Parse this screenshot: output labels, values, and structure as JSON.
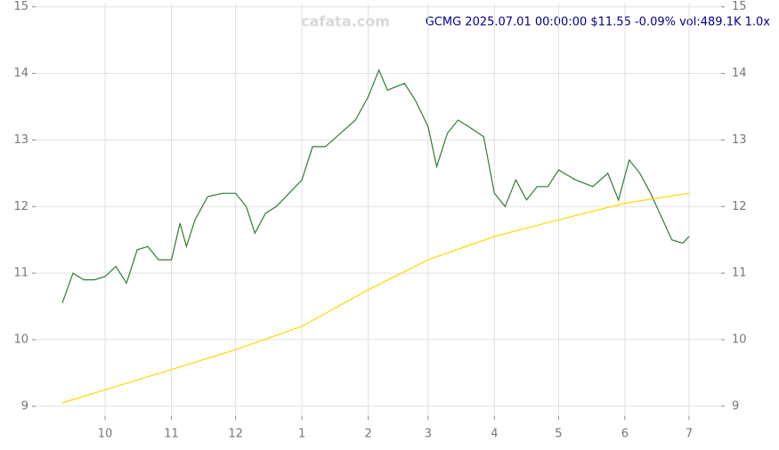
{
  "chart_data": {
    "type": "line",
    "title": "GCMG 2025.07.01 00:00:00 $11.55 -0.09% vol:489.1K 1.0x",
    "watermark": "cafata.com",
    "xlim": [
      -32.5,
      288
    ],
    "ylim": [
      8.85,
      15.05
    ],
    "yticks": [
      9,
      10,
      11,
      12,
      13,
      14,
      15
    ],
    "xticks": [
      {
        "value": 0,
        "label": "10"
      },
      {
        "value": 31,
        "label": "11"
      },
      {
        "value": 61,
        "label": "12"
      },
      {
        "value": 92,
        "label": "1"
      },
      {
        "value": 123,
        "label": "2"
      },
      {
        "value": 151,
        "label": "3"
      },
      {
        "value": 182,
        "label": "4"
      },
      {
        "value": 212,
        "label": "5"
      },
      {
        "value": 243,
        "label": "6"
      },
      {
        "value": 273,
        "label": "7"
      }
    ],
    "grid": true,
    "series": [
      {
        "color": "#2e7d32",
        "x": [
          -20,
          -15,
          -10,
          -5,
          0,
          5,
          10,
          15,
          20,
          25,
          31,
          35,
          38,
          42,
          48,
          55,
          61,
          66,
          70,
          75,
          80,
          86,
          92,
          97,
          103,
          110,
          117,
          123,
          128,
          132,
          140,
          145,
          151,
          155,
          160,
          165,
          170,
          177,
          182,
          187,
          192,
          197,
          202,
          207,
          212,
          220,
          228,
          235,
          240,
          245,
          250,
          255,
          260,
          265,
          270,
          273
        ],
        "values": [
          10.55,
          11.0,
          10.9,
          10.9,
          10.95,
          11.1,
          10.85,
          11.35,
          11.4,
          11.2,
          11.2,
          11.75,
          11.4,
          11.8,
          12.15,
          12.2,
          12.2,
          12.0,
          11.6,
          11.9,
          12.0,
          12.2,
          12.4,
          12.9,
          12.9,
          13.1,
          13.3,
          13.65,
          14.05,
          13.75,
          13.85,
          13.6,
          13.2,
          12.6,
          13.1,
          13.3,
          13.2,
          13.05,
          12.2,
          12.0,
          12.4,
          12.1,
          12.3,
          12.3,
          12.55,
          12.4,
          12.3,
          12.5,
          12.1,
          12.7,
          12.5,
          12.2,
          11.85,
          11.5,
          11.45,
          11.55
        ]
      },
      {
        "color": "#ffd700",
        "x": [
          -20,
          31,
          61,
          92,
          123,
          151,
          182,
          212,
          243,
          273
        ],
        "values": [
          9.05,
          9.55,
          9.85,
          10.2,
          10.75,
          11.2,
          11.55,
          11.8,
          12.05,
          12.2
        ]
      }
    ]
  }
}
